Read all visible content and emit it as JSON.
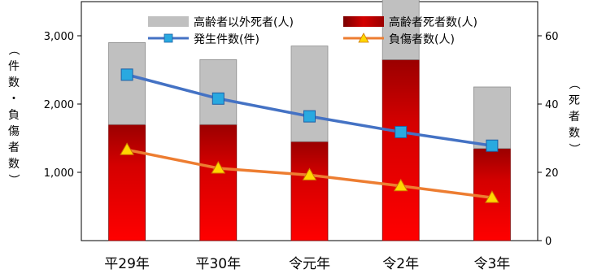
{
  "chart_data": {
    "type": "bar",
    "categories": [
      "平29年",
      "平30年",
      "令元年",
      "令2年",
      "令3年"
    ],
    "series": [
      {
        "name": "高齢者死者数(人)",
        "axis": "right",
        "kind": "stacked-bar",
        "values": [
          34,
          34,
          29,
          53,
          27
        ],
        "color": "#cc0000"
      },
      {
        "name": "高齢者以外死者(人)",
        "axis": "right",
        "kind": "stacked-bar",
        "values": [
          24,
          19,
          28,
          19,
          18
        ],
        "color": "#c0c0c0"
      },
      {
        "name": "発生件数(件)",
        "axis": "left",
        "kind": "line",
        "marker": "square",
        "values": [
          2430,
          2080,
          1820,
          1590,
          1390
        ],
        "color": "#4472c4",
        "marker_color": "#29a9e0"
      },
      {
        "name": "負傷者数(人)",
        "axis": "left",
        "kind": "line",
        "marker": "triangle",
        "values": [
          1330,
          1060,
          960,
          800,
          630
        ],
        "color": "#ed7d31",
        "marker_color": "#ffd700"
      }
    ],
    "left_axis": {
      "label": "（件数・負傷者数）",
      "ticks": [
        "1,000",
        "2,000",
        "3,000"
      ],
      "tick_values": [
        1000,
        2000,
        3000
      ],
      "ylim": [
        0,
        3500
      ]
    },
    "right_axis": {
      "label": "（死者数）",
      "ticks": [
        "0",
        "20",
        "40",
        "60"
      ],
      "tick_values": [
        0,
        20,
        40,
        60
      ],
      "ylim": [
        0,
        70
      ]
    },
    "legend": {
      "placement": "top",
      "order": [
        "高齢者以外死者(人)",
        "高齢者死者数(人)",
        "発生件数(件)",
        "負傷者数(人)"
      ]
    },
    "grid": false
  }
}
